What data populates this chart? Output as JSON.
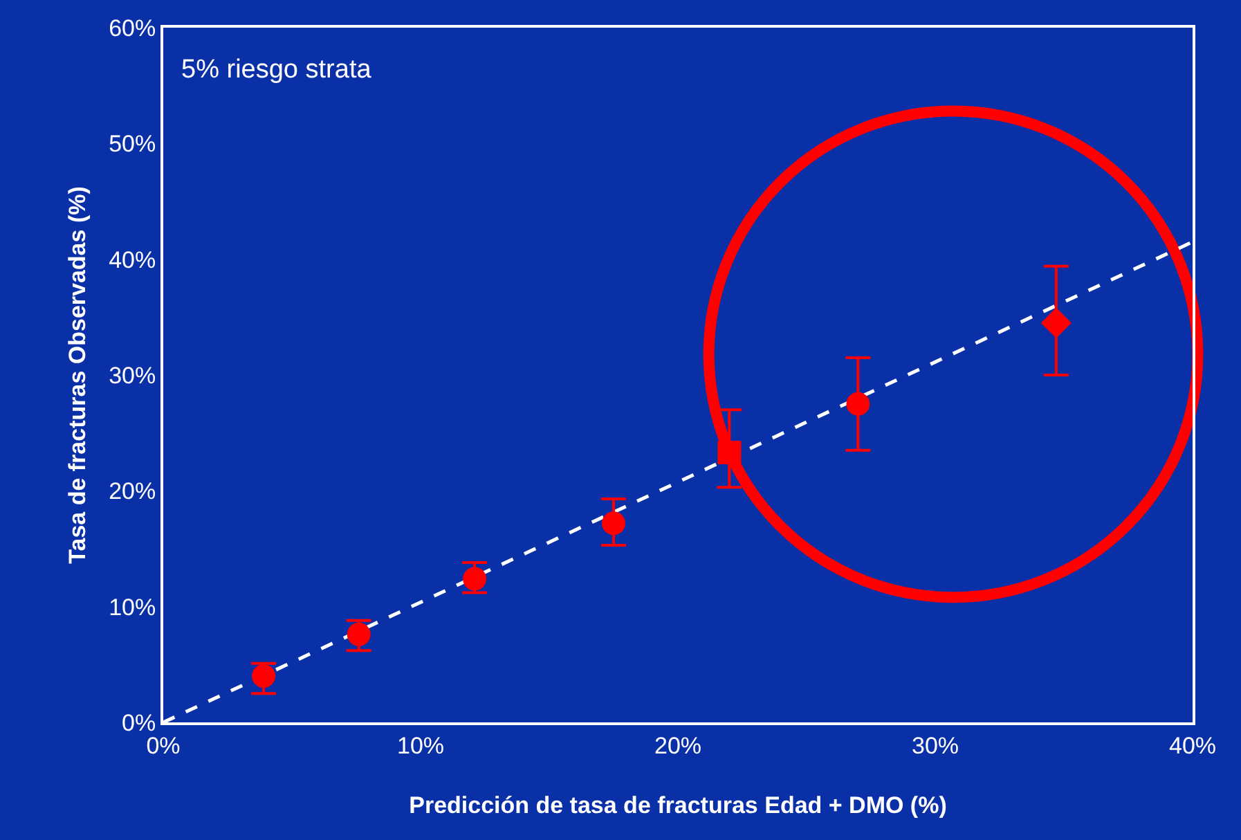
{
  "chart_data": {
    "type": "scatter",
    "xlabel": "Predicción de tasa de fracturas Edad + DMO (%)",
    "ylabel": "Tasa de fracturas Observadas (%)",
    "annotations": [
      "5% riesgo strata"
    ],
    "xlim": [
      0,
      40
    ],
    "ylim": [
      0,
      60
    ],
    "xticks": [
      {
        "value": 0,
        "label": "0%"
      },
      {
        "value": 10,
        "label": "10%"
      },
      {
        "value": 20,
        "label": "20%"
      },
      {
        "value": 30,
        "label": "30%"
      },
      {
        "value": 40,
        "label": "40%"
      }
    ],
    "yticks": [
      {
        "value": 0,
        "label": "0%"
      },
      {
        "value": 10,
        "label": "10%"
      },
      {
        "value": 20,
        "label": "20%"
      },
      {
        "value": 30,
        "label": "30%"
      },
      {
        "value": 40,
        "label": "40%"
      },
      {
        "value": 50,
        "label": "50%"
      },
      {
        "value": 60,
        "label": "60%"
      }
    ],
    "series": [
      {
        "type": "line",
        "color": "#ffffff",
        "line_style": "dashed",
        "marker": "none",
        "x": [
          0,
          40
        ],
        "values": [
          0,
          41.5
        ]
      },
      {
        "color": "#ff0000",
        "marker": "circle",
        "x": [
          3.9,
          7.6,
          12.1,
          17.5
        ],
        "values": [
          4.0,
          7.6,
          12.4,
          17.2
        ],
        "errors": [
          [
            2.5,
            5.1
          ],
          [
            6.2,
            8.8
          ],
          [
            11.2,
            13.8
          ],
          [
            15.3,
            19.3
          ]
        ]
      },
      {
        "color": "#ff0000",
        "marker": "square",
        "x": [
          22.0
        ],
        "values": [
          23.3
        ],
        "errors": [
          [
            20.3,
            27.0
          ]
        ]
      },
      {
        "color": "#ff0000",
        "x": [
          27.0
        ],
        "values": [
          27.5
        ],
        "errors": [
          [
            23.5,
            31.5
          ]
        ]
      },
      {
        "color": "#ff0000",
        "marker": "diamond",
        "x": [
          34.7
        ],
        "values": [
          34.5
        ],
        "errors": [
          [
            30.0,
            39.4
          ]
        ]
      }
    ]
  }
}
